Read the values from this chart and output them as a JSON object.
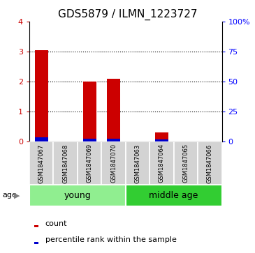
{
  "title": "GDS5879 / ILMN_1223727",
  "samples": [
    "GSM1847067",
    "GSM1847068",
    "GSM1847069",
    "GSM1847070",
    "GSM1847063",
    "GSM1847064",
    "GSM1847065",
    "GSM1847066"
  ],
  "red_values": [
    3.05,
    0.0,
    2.0,
    2.1,
    0.0,
    0.3,
    0.0,
    0.0
  ],
  "blue_values": [
    0.14,
    0.0,
    0.1,
    0.1,
    0.0,
    0.07,
    0.0,
    0.0
  ],
  "ylim_left": [
    0,
    4
  ],
  "ylim_right": [
    0,
    100
  ],
  "yticks_left": [
    0,
    1,
    2,
    3,
    4
  ],
  "yticks_right": [
    0,
    25,
    50,
    75,
    100
  ],
  "ytick_labels_right": [
    "0",
    "25",
    "50",
    "75",
    "100%"
  ],
  "bar_width": 0.55,
  "red_color": "#CC0000",
  "blue_color": "#0000CC",
  "label_area_color": "#d3d3d3",
  "young_color": "#90EE90",
  "middleage_color": "#32CD32",
  "age_label": "age",
  "legend_items": [
    "count",
    "percentile rank within the sample"
  ],
  "title_fontsize": 11,
  "tick_fontsize": 8,
  "sample_fontsize": 6,
  "group_fontsize": 9,
  "legend_fontsize": 8
}
